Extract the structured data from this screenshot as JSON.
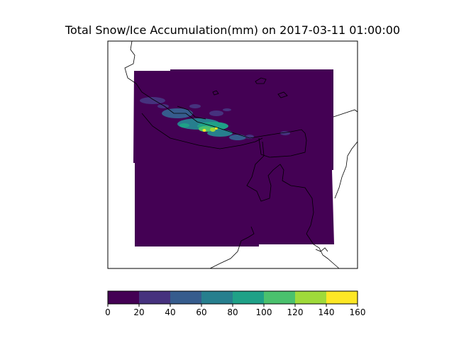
{
  "figure": {
    "title": "Total Snow/Ice Accumulation(mm) on 2017-03-11 01:00:00"
  },
  "colorbar": {
    "min": 0,
    "max": 160,
    "step": 20,
    "tick_labels": [
      "0",
      "20",
      "40",
      "60",
      "80",
      "100",
      "120",
      "140",
      "160"
    ],
    "colors": [
      "#440154",
      "#46327e",
      "#365c8d",
      "#277f8e",
      "#1fa187",
      "#4ac16d",
      "#9fda3a",
      "#fde725"
    ]
  },
  "map": {
    "background_color": "#440154",
    "coastline_color": "#000000"
  }
}
